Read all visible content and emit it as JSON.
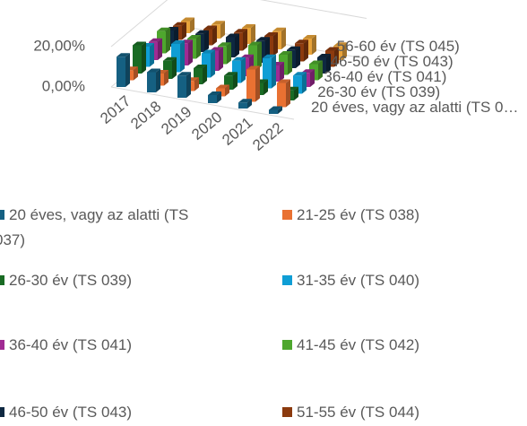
{
  "chart_data": {
    "type": "bar3d",
    "categories": [
      "2017",
      "2018",
      "2019",
      "2020",
      "2021",
      "2022"
    ],
    "series": [
      {
        "name": "20 éves, vagy az alatti (TS 037)",
        "color": "#156082",
        "values": [
          15,
          10,
          11,
          4,
          3,
          2
        ]
      },
      {
        "name": "21-25 év (TS 038)",
        "color": "#e97132",
        "values": [
          5,
          6,
          5,
          4,
          16,
          12
        ]
      },
      {
        "name": "26-30 év (TS 039)",
        "color": "#196b24",
        "values": [
          14,
          9,
          8,
          7,
          6,
          5
        ]
      },
      {
        "name": "31-35 év (TS 040)",
        "color": "#0f9ed5",
        "values": [
          10,
          14,
          12,
          11,
          15,
          9
        ]
      },
      {
        "name": "36-40 év (TS 041)",
        "color": "#a02b93",
        "values": [
          9,
          11,
          10,
          9,
          8,
          7
        ]
      },
      {
        "name": "41-45 év (TS 042)",
        "color": "#4ea72e",
        "values": [
          11,
          10,
          9,
          12,
          10,
          8
        ]
      },
      {
        "name": "46-50 év (TS 043)",
        "color": "#0e2841",
        "values": [
          8,
          9,
          10,
          11,
          9,
          8
        ]
      },
      {
        "name": "51-55 év (TS 044)",
        "color": "#8b3a0e",
        "values": [
          7,
          8,
          9,
          10,
          9,
          8
        ]
      },
      {
        "name": "56-60 év (TS 045)",
        "color": "#e8a33a",
        "values": [
          6,
          7,
          8,
          9,
          8,
          7
        ]
      }
    ],
    "ylim": [
      0,
      20
    ],
    "yticks": [
      {
        "value": 0,
        "label": "0,00%"
      },
      {
        "value": 20,
        "label": "20,00%"
      }
    ],
    "grid": true
  }
}
